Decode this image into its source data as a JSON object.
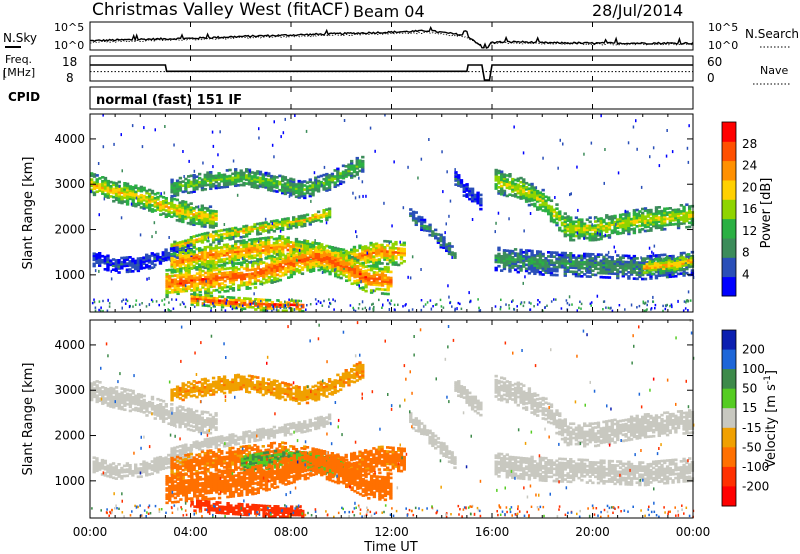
{
  "header": {
    "title": "Christmas Valley West (fitACF)",
    "beam": "Beam 04",
    "date": "28/Jul/2014"
  },
  "top_panels": {
    "nsky_label": "N.Sky",
    "nsearch_label": "N.Search",
    "noise_ticks": [
      "10^5",
      "10^0"
    ],
    "freq_label_1": "Freq.",
    "freq_label_2": "[MHz]",
    "freq_ticks": [
      "18",
      "8"
    ],
    "nave_ticks": [
      "60",
      "0"
    ],
    "nave_label": "Nave",
    "cpid_label": "CPID",
    "cpid_value": "normal (fast) 151 IF"
  },
  "x_axis": {
    "label": "Time UT",
    "ticks": [
      "00:00",
      "04:00",
      "08:00",
      "12:00",
      "16:00",
      "20:00",
      "00:00"
    ]
  },
  "colors": {
    "power_scale": [
      "#0000ff",
      "#2a4fb8",
      "#3c8c5a",
      "#2bb043",
      "#8fd400",
      "#ffd000",
      "#ff9000",
      "#ff5000",
      "#ff0000"
    ],
    "velocity_scale": [
      "#0b1fb0",
      "#1d66d8",
      "#3d8a4a",
      "#55cc22",
      "#c8c8c0",
      "#f0a000",
      "#ff7000",
      "#ff3000",
      "#ff0000"
    ]
  },
  "chart_data": [
    {
      "type": "line",
      "title": "",
      "series": [
        {
          "name": "N.Sky",
          "x": [
            0,
            2,
            4,
            6,
            8,
            10,
            12,
            13.5,
            15,
            15.7,
            16,
            17,
            18,
            20,
            22,
            24
          ],
          "y": [
            1.5,
            1.8,
            2.0,
            2.4,
            2.7,
            3.0,
            3.3,
            3.6,
            2.6,
            0,
            1.2,
            1.3,
            1.1,
            1.0,
            1.0,
            1.0
          ]
        },
        {
          "name": "N.Search",
          "x": [
            0,
            2,
            4,
            6,
            8,
            10,
            12,
            13.5,
            15,
            15.7,
            16,
            17,
            18,
            20,
            22,
            24
          ],
          "y": [
            1.2,
            1.5,
            1.8,
            2.1,
            2.4,
            2.7,
            3.0,
            3.2,
            2.3,
            0,
            1.0,
            1.0,
            0.9,
            0.8,
            0.8,
            0.8
          ]
        }
      ],
      "xlim": [
        0,
        24
      ],
      "ylim": [
        0,
        5
      ],
      "yscale": "log"
    },
    {
      "type": "line",
      "title": "",
      "series": [
        {
          "name": "Freq.",
          "x": [
            0,
            3,
            3.05,
            15,
            15.05,
            15.6,
            15.7,
            15.9,
            16.0,
            24
          ],
          "y": [
            14.5,
            14.5,
            11.8,
            11.8,
            14.5,
            14.5,
            8,
            8,
            14.5,
            14.5
          ]
        },
        {
          "name": "Nave",
          "x": [
            0,
            24
          ],
          "y": [
            22,
            22
          ]
        }
      ],
      "xlim": [
        0,
        24
      ],
      "ylim": [
        8,
        18
      ],
      "ylim_right": [
        0,
        60
      ]
    },
    {
      "type": "heatmap",
      "title": "",
      "ylabel": "Slant Range [km]",
      "xlabel": "Time UT",
      "xlim": [
        0,
        24
      ],
      "ylim": [
        180,
        4550
      ],
      "yticks": [
        1000,
        2000,
        3000,
        4000
      ],
      "colorbar_label": "Power [dB]",
      "colorbar_ticks": [
        4,
        8,
        12,
        16,
        20,
        24,
        28
      ],
      "color_range": [
        0,
        32
      ],
      "bands": [
        {
          "t": [
            0,
            0.8,
            2.0,
            3.2,
            4.2,
            5.0
          ],
          "r": [
            3000,
            2850,
            2700,
            2450,
            2300,
            2250
          ],
          "w": 230,
          "v": 20
        },
        {
          "t": [
            3.2,
            4.5,
            6.0,
            7.4,
            8.4,
            9.5,
            10.8
          ],
          "r": [
            2900,
            3050,
            3150,
            3000,
            2850,
            3050,
            3450
          ],
          "w": 180,
          "v": 14
        },
        {
          "t": [
            3.2,
            4.5,
            6.5,
            8.5,
            9.5
          ],
          "r": [
            1600,
            1800,
            2000,
            2200,
            2350
          ],
          "w": 130,
          "v": 20
        },
        {
          "t": [
            0.1,
            1.0,
            2.0,
            3.0,
            4.0
          ],
          "r": [
            1350,
            1200,
            1250,
            1400,
            1500
          ],
          "w": 170,
          "v": 5
        },
        {
          "t": [
            3.2,
            4.5,
            6.0,
            7.5,
            8.5,
            10.0,
            11.5,
            12.5
          ],
          "r": [
            1250,
            1400,
            1500,
            1600,
            1500,
            1300,
            1500,
            1450
          ],
          "w": 260,
          "v": 24
        },
        {
          "t": [
            3.0,
            4.0,
            5.0,
            6.5,
            8.0,
            9.0,
            10.0,
            11.0,
            12.0
          ],
          "r": [
            800,
            850,
            900,
            1000,
            1250,
            1400,
            1200,
            900,
            850
          ],
          "w": 300,
          "v": 27
        },
        {
          "t": [
            4.0,
            5.5,
            7.0,
            8.5
          ],
          "r": [
            450,
            380,
            320,
            300
          ],
          "w": 120,
          "v": 29
        },
        {
          "t": [
            12.7,
            13.3,
            14.0,
            14.5
          ],
          "r": [
            2350,
            2050,
            1700,
            1400
          ],
          "w": 150,
          "v": 9
        },
        {
          "t": [
            14.5,
            15.0,
            15.5,
            15.9
          ],
          "r": [
            3100,
            2800,
            2600,
            2700
          ],
          "w": 170,
          "v": 5
        },
        {
          "t": [
            16.1,
            17.0,
            18.0,
            19.0,
            20.0,
            21.0,
            22.0,
            23.0,
            23.95
          ],
          "r": [
            3050,
            2900,
            2600,
            2000,
            2000,
            2100,
            2200,
            2250,
            2300
          ],
          "w": 250,
          "v": 18
        },
        {
          "t": [
            16.1,
            18.0,
            20.0,
            22.0,
            23.95
          ],
          "r": [
            1350,
            1250,
            1200,
            1150,
            1250
          ],
          "w": 260,
          "v": 10
        },
        {
          "t": [
            22.0,
            23.0,
            23.95
          ],
          "r": [
            1150,
            1200,
            1300
          ],
          "w": 160,
          "v": 22
        }
      ]
    },
    {
      "type": "heatmap",
      "title": "",
      "ylabel": "Slant Range [km]",
      "xlabel": "Time UT",
      "xlim": [
        0,
        24
      ],
      "ylim": [
        180,
        4550
      ],
      "yticks": [
        1000,
        2000,
        3000,
        4000
      ],
      "colorbar_label": "Velocity [m s^-1]",
      "colorbar_ticks": [
        200,
        100,
        50,
        15,
        -15,
        -50,
        -100,
        -200
      ],
      "color_range": [
        -250,
        250
      ],
      "bands": [
        {
          "t": [
            0,
            0.8,
            2.0,
            3.2,
            4.2,
            5.0
          ],
          "r": [
            3000,
            2850,
            2700,
            2450,
            2300,
            2250
          ],
          "w": 230,
          "v": 0
        },
        {
          "t": [
            3.2,
            4.5,
            6.0,
            7.4,
            8.4,
            9.5,
            10.8
          ],
          "r": [
            2900,
            3050,
            3150,
            3000,
            2850,
            3050,
            3450
          ],
          "w": 180,
          "v": -40
        },
        {
          "t": [
            3.2,
            4.5,
            6.5,
            8.5,
            9.5
          ],
          "r": [
            1600,
            1800,
            2000,
            2200,
            2350
          ],
          "w": 130,
          "v": 0
        },
        {
          "t": [
            0.1,
            1.0,
            2.0,
            3.0,
            4.0
          ],
          "r": [
            1350,
            1200,
            1250,
            1400,
            1500
          ],
          "w": 170,
          "v": 0
        },
        {
          "t": [
            3.2,
            4.5,
            6.0,
            7.5,
            8.5,
            10.0,
            11.5,
            12.5
          ],
          "r": [
            1250,
            1400,
            1500,
            1600,
            1500,
            1300,
            1500,
            1450
          ],
          "w": 260,
          "v": -60
        },
        {
          "t": [
            6.0,
            7.5,
            8.5,
            10.0
          ],
          "r": [
            1350,
            1500,
            1450,
            1250
          ],
          "w": 200,
          "v": 45
        },
        {
          "t": [
            3.0,
            4.0,
            5.0,
            6.5,
            8.0,
            9.0,
            10.0,
            11.0,
            12.0
          ],
          "r": [
            800,
            850,
            900,
            1000,
            1250,
            1400,
            1200,
            900,
            850
          ],
          "w": 300,
          "v": -70
        },
        {
          "t": [
            4.0,
            5.5,
            7.0,
            8.5
          ],
          "r": [
            450,
            380,
            320,
            300
          ],
          "w": 120,
          "v": -120
        },
        {
          "t": [
            12.7,
            13.3,
            14.0,
            14.5
          ],
          "r": [
            2350,
            2050,
            1700,
            1400
          ],
          "w": 150,
          "v": 0
        },
        {
          "t": [
            14.5,
            15.0,
            15.5,
            15.9
          ],
          "r": [
            3100,
            2800,
            2600,
            2700
          ],
          "w": 170,
          "v": 0
        },
        {
          "t": [
            16.1,
            17.0,
            18.0,
            19.0,
            20.0,
            21.0,
            22.0,
            23.0,
            23.95
          ],
          "r": [
            3050,
            2900,
            2600,
            2000,
            2000,
            2100,
            2200,
            2250,
            2300
          ],
          "w": 250,
          "v": 0
        },
        {
          "t": [
            16.1,
            18.0,
            20.0,
            22.0,
            23.95
          ],
          "r": [
            1350,
            1250,
            1200,
            1150,
            1250
          ],
          "w": 260,
          "v": 0
        }
      ]
    }
  ]
}
